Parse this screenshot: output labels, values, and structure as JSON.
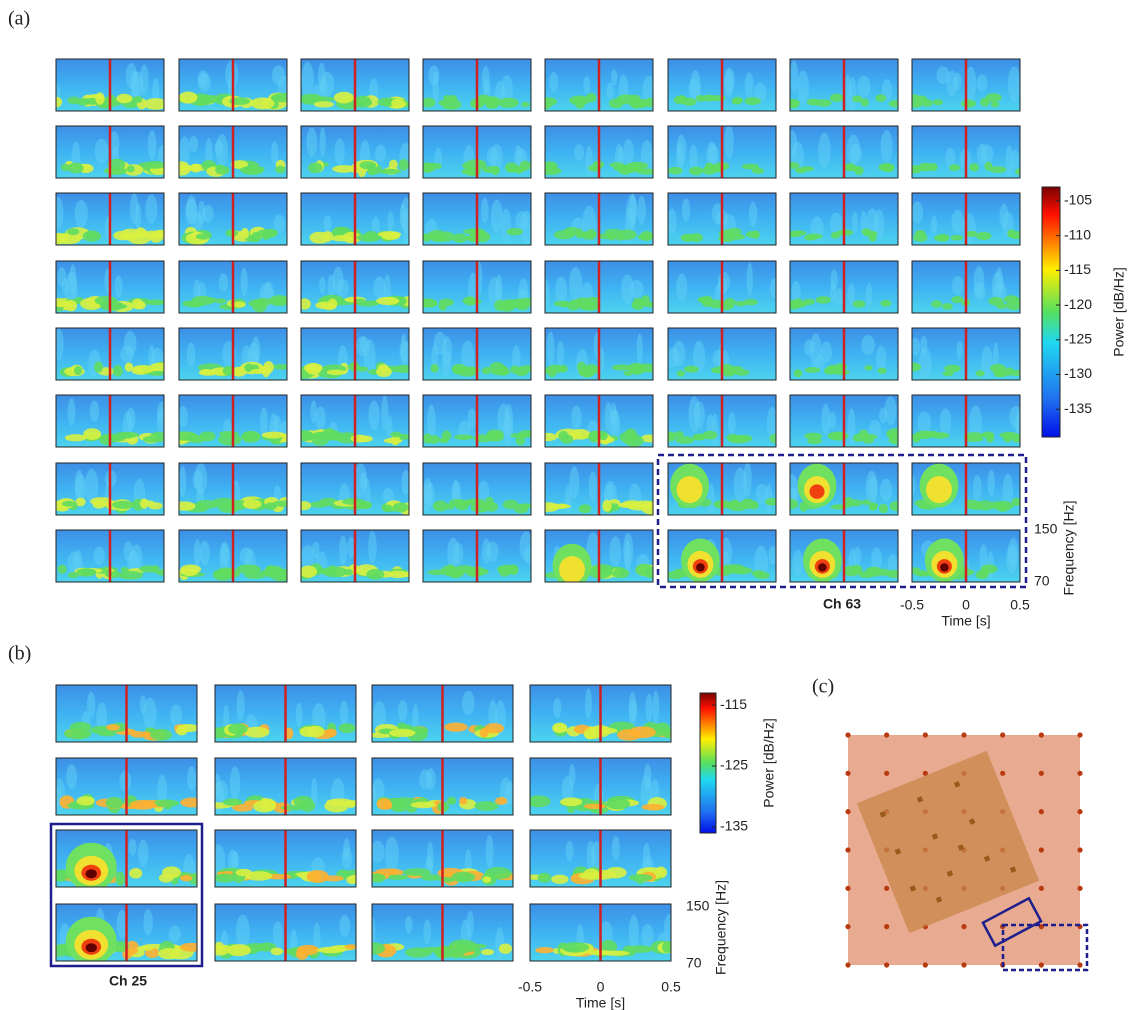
{
  "panel_a": {
    "label": "(a)",
    "channel": "Ch 63",
    "colorbar": {
      "title": "Power [dB/Hz]",
      "ticks": [
        -105,
        -110,
        -115,
        -120,
        -125,
        -130,
        -135
      ],
      "lim": [
        -103,
        -139
      ]
    },
    "frequency": {
      "title": "Frequency [Hz]",
      "ticks": [
        150,
        70
      ]
    },
    "time": {
      "title": "Time [s]",
      "ticks": [
        -0.5,
        0,
        0.5
      ]
    }
  },
  "panel_b": {
    "label": "(b)",
    "channel": "Ch 25",
    "colorbar": {
      "title": "Power [dB/Hz]",
      "ticks": [
        -115,
        -125,
        -135
      ],
      "lim": [
        -113,
        -136
      ]
    },
    "frequency": {
      "title": "Frequency [Hz]",
      "ticks": [
        150,
        70
      ]
    },
    "time": {
      "title": "Time [s]",
      "ticks": [
        -0.5,
        0,
        0.5
      ]
    }
  },
  "panel_c": {
    "label": "(c)"
  }
}
